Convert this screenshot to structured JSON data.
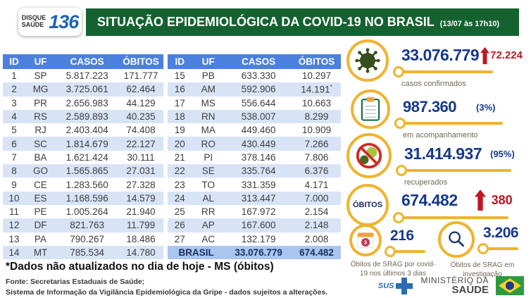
{
  "header": {
    "badge_line1": "DISQUE",
    "badge_line2": "SAÚDE",
    "badge_number": "136",
    "title": "SITUAÇÃO EPIDEMIOLÓGICA DA COVID-19 NO BRASIL",
    "timestamp": "(13/07 às 17h10)"
  },
  "table": {
    "headers": [
      "ID",
      "UF",
      "CASOS",
      "ÓBITOS"
    ],
    "left_rows": [
      {
        "id": "1",
        "uf": "SP",
        "casos": "5.817.223",
        "obitos": "171.777"
      },
      {
        "id": "2",
        "uf": "MG",
        "casos": "3.725.061",
        "obitos": "62.464"
      },
      {
        "id": "3",
        "uf": "PR",
        "casos": "2.656.983",
        "obitos": "44.129"
      },
      {
        "id": "4",
        "uf": "RS",
        "casos": "2.589.893",
        "obitos": "40.235"
      },
      {
        "id": "5",
        "uf": "RJ",
        "casos": "2.403.404",
        "obitos": "74.408"
      },
      {
        "id": "6",
        "uf": "SC",
        "casos": "1.814.679",
        "obitos": "22.127"
      },
      {
        "id": "7",
        "uf": "BA",
        "casos": "1.621.424",
        "obitos": "30.111"
      },
      {
        "id": "8",
        "uf": "GO",
        "casos": "1.565.865",
        "obitos": "27.031"
      },
      {
        "id": "9",
        "uf": "CE",
        "casos": "1.283.560",
        "obitos": "27.328"
      },
      {
        "id": "10",
        "uf": "ES",
        "casos": "1.168.596",
        "obitos": "14.579"
      },
      {
        "id": "11",
        "uf": "PE",
        "casos": "1.005.264",
        "obitos": "21.940"
      },
      {
        "id": "12",
        "uf": "DF",
        "casos": "821.763",
        "obitos": "11.799"
      },
      {
        "id": "13",
        "uf": "PA",
        "casos": "790.267",
        "obitos": "18.486"
      },
      {
        "id": "14",
        "uf": "MT",
        "casos": "785.534",
        "obitos": "14.780"
      }
    ],
    "right_rows": [
      {
        "id": "15",
        "uf": "PB",
        "casos": "633.330",
        "obitos": "10.297"
      },
      {
        "id": "16",
        "uf": "AM",
        "casos": "592.906",
        "obitos": "14.191*"
      },
      {
        "id": "17",
        "uf": "MS",
        "casos": "556.644",
        "obitos": "10.663"
      },
      {
        "id": "18",
        "uf": "RN",
        "casos": "538.007",
        "obitos": "8.299"
      },
      {
        "id": "19",
        "uf": "MA",
        "casos": "449.460",
        "obitos": "10.909"
      },
      {
        "id": "20",
        "uf": "RO",
        "casos": "430.449",
        "obitos": "7.266"
      },
      {
        "id": "21",
        "uf": "PI",
        "casos": "378.146",
        "obitos": "7.806"
      },
      {
        "id": "22",
        "uf": "SE",
        "casos": "335.764",
        "obitos": "6.376"
      },
      {
        "id": "23",
        "uf": "TO",
        "casos": "331.359",
        "obitos": "4.171"
      },
      {
        "id": "24",
        "uf": "AL",
        "casos": "313.447",
        "obitos": "7.000"
      },
      {
        "id": "25",
        "uf": "RR",
        "casos": "167.972",
        "obitos": "2.154"
      },
      {
        "id": "26",
        "uf": "AP",
        "casos": "167.600",
        "obitos": "2.148"
      },
      {
        "id": "27",
        "uf": "AC",
        "casos": "132.179",
        "obitos": "2.008"
      }
    ],
    "total_label": "BRASIL",
    "total_casos": "33.076.779",
    "total_obitos": "674.482"
  },
  "stats": {
    "confirmed": {
      "value": "33.076.779",
      "delta": "72.224",
      "label": "casos confirmados"
    },
    "monitoring": {
      "value": "987.360",
      "pct": "(3%)",
      "label": "em acompanhamento"
    },
    "recovered": {
      "value": "31.414.937",
      "pct": "(95%)",
      "label": "recuperados"
    },
    "deaths": {
      "icon_label": "ÓBITOS",
      "value": "674.482",
      "delta": "380"
    },
    "srag_recent": {
      "value": "216",
      "badge": "3",
      "label": "Óbitos de SRAG por covid-19 nos últimos 3 dias"
    },
    "srag_invest": {
      "value": "3.206",
      "label": "Óbitos de SRAG em investigação"
    }
  },
  "footnote": "*Dados não atualizados no dia de hoje - MS (óbitos)",
  "source_line1": "Fonte: Secretarias Estaduais de Saúde;",
  "source_line2": "Sistema de Informação da Vigilância Epidemiológica da Gripe - dados sujeitos a alterações.",
  "branding": {
    "sus": "SUS",
    "ministry_line1": "MINISTÉRIO DA",
    "ministry_line2": "SAÚDE"
  },
  "colors": {
    "header_green": "#156231",
    "table_header_blue": "#4c80de",
    "alt_row_blue": "#d8e4f6",
    "total_row_blue": "#a9c6ee",
    "number_navy": "#14398c",
    "alert_red": "#bf1722",
    "accent_gold": "#f0b32e",
    "label_olive": "#6e6753"
  },
  "chart_data": {
    "type": "table",
    "title": "SITUAÇÃO EPIDEMIOLÓGICA DA COVID-19 NO BRASIL (13/07 às 17h10)",
    "columns": [
      "ID",
      "UF",
      "CASOS",
      "ÓBITOS"
    ],
    "rows": [
      [
        1,
        "SP",
        5817223,
        171777
      ],
      [
        2,
        "MG",
        3725061,
        62464
      ],
      [
        3,
        "PR",
        2656983,
        44129
      ],
      [
        4,
        "RS",
        2589893,
        40235
      ],
      [
        5,
        "RJ",
        2403404,
        74408
      ],
      [
        6,
        "SC",
        1814679,
        22127
      ],
      [
        7,
        "BA",
        1621424,
        30111
      ],
      [
        8,
        "GO",
        1565865,
        27031
      ],
      [
        9,
        "CE",
        1283560,
        27328
      ],
      [
        10,
        "ES",
        1168596,
        14579
      ],
      [
        11,
        "PE",
        1005264,
        21940
      ],
      [
        12,
        "DF",
        821763,
        11799
      ],
      [
        13,
        "PA",
        790267,
        18486
      ],
      [
        14,
        "MT",
        785534,
        14780
      ],
      [
        15,
        "PB",
        633330,
        10297
      ],
      [
        16,
        "AM",
        592906,
        14191
      ],
      [
        17,
        "MS",
        556644,
        10663
      ],
      [
        18,
        "RN",
        538007,
        8299
      ],
      [
        19,
        "MA",
        449460,
        10909
      ],
      [
        20,
        "RO",
        430449,
        7266
      ],
      [
        21,
        "PI",
        378146,
        7806
      ],
      [
        22,
        "SE",
        335764,
        6376
      ],
      [
        23,
        "TO",
        331359,
        4171
      ],
      [
        24,
        "AL",
        313447,
        7000
      ],
      [
        25,
        "RR",
        167972,
        2154
      ],
      [
        26,
        "AP",
        167600,
        2148
      ],
      [
        27,
        "AC",
        132179,
        2008
      ]
    ],
    "total": {
      "uf": "BRASIL",
      "casos": 33076779,
      "obitos": 674482
    },
    "summary": {
      "casos_confirmados": 33076779,
      "novos_casos": 72224,
      "em_acompanhamento": 987360,
      "em_acompanhamento_pct": 3,
      "recuperados": 31414937,
      "recuperados_pct": 95,
      "obitos": 674482,
      "novos_obitos": 380,
      "obitos_srag_ultimos_3_dias": 216,
      "obitos_srag_em_investigacao": 3206
    },
    "notes": "AM óbitos (14.191) marcado com * — dados não atualizados no dia de hoje"
  }
}
